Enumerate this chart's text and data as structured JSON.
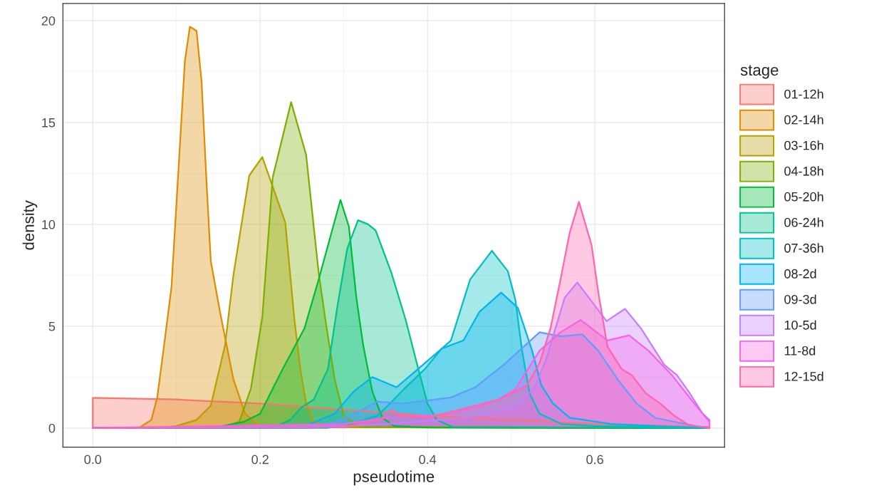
{
  "chart_data": {
    "type": "area",
    "xlabel": "pseudotime",
    "ylabel": "density",
    "legend_title": "stage",
    "legend": "right",
    "grid": true,
    "xlim": [
      -0.0357,
      0.755
    ],
    "ylim": [
      -0.94,
      20.84
    ],
    "xticks": [
      {
        "value": 0,
        "label": "0.0"
      },
      0.2,
      0.4,
      0.6
    ],
    "yticks": [
      0,
      5,
      10,
      15,
      20
    ],
    "series": [
      {
        "name": "01-12h",
        "color": "#F8766D",
        "x": [
          0,
          0,
          0.1,
          0.2,
          0.3,
          0.4,
          0.5,
          0.6,
          0.737,
          0.737
        ],
        "values": [
          0,
          1.48,
          1.4,
          1.2,
          0.9,
          0.6,
          0.4,
          0.2,
          0.05,
          0
        ]
      },
      {
        "name": "02-14h",
        "color": "#DE8C00",
        "x": [
          0,
          0.055,
          0.07,
          0.077,
          0.085,
          0.094,
          0.104,
          0.11,
          0.116,
          0.124,
          0.13,
          0.136,
          0.141,
          0.152,
          0.168,
          0.182,
          0.2,
          0.3,
          0.5,
          0.737
        ],
        "values": [
          0,
          0,
          0.4,
          1.5,
          4,
          6.9,
          13.8,
          18,
          19.7,
          19.5,
          17,
          12,
          8.2,
          5.7,
          2.4,
          0.7,
          0.1,
          0.05,
          0,
          0
        ]
      },
      {
        "name": "03-16h",
        "color": "#B79F00",
        "x": [
          0,
          0.08,
          0.1,
          0.124,
          0.141,
          0.158,
          0.168,
          0.187,
          0.2026,
          0.23,
          0.241,
          0.248,
          0.255,
          0.264,
          0.28,
          0.737
        ],
        "values": [
          0,
          0,
          0.1,
          0.4,
          1.1,
          4.05,
          7.5,
          12.4,
          13.3,
          10.1,
          5.3,
          2.9,
          1.2,
          0.3,
          0.05,
          0
        ]
      },
      {
        "name": "04-18h",
        "color": "#7CAE00",
        "x": [
          0,
          0.15,
          0.175,
          0.189,
          0.2026,
          0.215,
          0.237,
          0.255,
          0.264,
          0.27,
          0.278,
          0.289,
          0.3,
          0.32,
          0.737
        ],
        "values": [
          0,
          0,
          0.3,
          1.95,
          5.45,
          12.3,
          16,
          13.4,
          9.9,
          7.6,
          5.3,
          2.4,
          0.6,
          0.05,
          0
        ]
      },
      {
        "name": "05-20h",
        "color": "#00BA38",
        "x": [
          0,
          0.13,
          0.15,
          0.18,
          0.2,
          0.227,
          0.253,
          0.27,
          0.296,
          0.306,
          0.315,
          0.323,
          0.334,
          0.346,
          0.36,
          0.4,
          0.737
        ],
        "values": [
          0,
          0,
          0.05,
          0.3,
          0.7,
          2.9,
          4.9,
          7.3,
          11.2,
          9.9,
          6.4,
          4.1,
          1.8,
          0.5,
          0.1,
          0.02,
          0
        ]
      },
      {
        "name": "06-24h",
        "color": "#00C08B",
        "x": [
          0,
          0.2,
          0.22,
          0.236,
          0.249,
          0.264,
          0.281,
          0.292,
          0.304,
          0.317,
          0.329,
          0.338,
          0.357,
          0.374,
          0.389,
          0.4,
          0.411,
          0.43,
          0.737
        ],
        "values": [
          0,
          0,
          0.1,
          0.4,
          1.0,
          1.4,
          2.9,
          5.9,
          8.8,
          10.2,
          10.0,
          9.7,
          7.6,
          5.3,
          2.9,
          1.2,
          0.4,
          0.05,
          0
        ]
      },
      {
        "name": "07-36h",
        "color": "#00BFC4",
        "x": [
          0,
          0.28,
          0.3,
          0.34,
          0.355,
          0.374,
          0.397,
          0.417,
          0.428,
          0.451,
          0.477,
          0.496,
          0.505,
          0.513,
          0.522,
          0.534,
          0.56,
          0.6,
          0.737
        ],
        "values": [
          0,
          0,
          0.1,
          0.6,
          1.2,
          2.0,
          2.9,
          3.9,
          4.3,
          7.3,
          8.7,
          7.7,
          6.3,
          3.8,
          1.7,
          0.7,
          0.2,
          0.1,
          0
        ]
      },
      {
        "name": "08-2d",
        "color": "#00B4F0",
        "x": [
          0,
          0.24,
          0.26,
          0.289,
          0.312,
          0.334,
          0.363,
          0.386,
          0.417,
          0.443,
          0.462,
          0.488,
          0.508,
          0.525,
          0.536,
          0.55,
          0.57,
          0.62,
          0.7,
          0.737
        ],
        "values": [
          0,
          0,
          0.2,
          0.7,
          1.8,
          2.5,
          2.0,
          2.8,
          3.9,
          4.3,
          5.7,
          6.65,
          5.9,
          3.8,
          2.1,
          1.2,
          0.5,
          0.2,
          0.05,
          0
        ]
      },
      {
        "name": "09-3d",
        "color": "#619CFF",
        "x": [
          0,
          0.26,
          0.28,
          0.306,
          0.34,
          0.37,
          0.4,
          0.428,
          0.457,
          0.491,
          0.534,
          0.559,
          0.585,
          0.604,
          0.627,
          0.65,
          0.672,
          0.72,
          0.737
        ],
        "values": [
          0,
          0,
          0.15,
          0.55,
          1.3,
          1.2,
          1.35,
          1.5,
          2.0,
          3.1,
          4.7,
          4.5,
          4.6,
          3.8,
          2.4,
          1.2,
          0.5,
          0.1,
          0
        ]
      },
      {
        "name": "10-5d",
        "color": "#C77CFF",
        "x": [
          0,
          0.3,
          0.35,
          0.45,
          0.508,
          0.528,
          0.542,
          0.553,
          0.564,
          0.579,
          0.614,
          0.636,
          0.655,
          0.683,
          0.698,
          0.712,
          0.729,
          0.737,
          0.737
        ],
        "values": [
          0,
          0.1,
          0.2,
          0.5,
          1.1,
          2.0,
          3.4,
          4.9,
          6.4,
          7.15,
          5.25,
          5.85,
          4.9,
          3.1,
          2.6,
          1.8,
          0.7,
          0.4,
          0
        ]
      },
      {
        "name": "11-8d",
        "color": "#F564E3",
        "x": [
          0,
          0.3,
          0.369,
          0.4,
          0.428,
          0.457,
          0.485,
          0.505,
          0.534,
          0.559,
          0.583,
          0.615,
          0.641,
          0.664,
          0.692,
          0.715,
          0.737,
          0.737
        ],
        "values": [
          0,
          0.2,
          0.6,
          0.6,
          0.7,
          1.0,
          1.4,
          1.9,
          3.8,
          4.7,
          5.3,
          4.3,
          4.55,
          3.8,
          2.6,
          1.4,
          0.3,
          0
        ]
      },
      {
        "name": "12-15d",
        "color": "#FF64B0",
        "x": [
          0,
          0.3,
          0.343,
          0.357,
          0.37,
          0.4,
          0.485,
          0.505,
          0.519,
          0.534,
          0.547,
          0.559,
          0.57,
          0.581,
          0.596,
          0.604,
          0.615,
          0.632,
          0.644,
          0.661,
          0.678,
          0.695,
          0.712,
          0.737
        ],
        "values": [
          0,
          0.05,
          0.4,
          0.9,
          0.6,
          0.5,
          1.4,
          1.8,
          2.1,
          3.2,
          4.9,
          7.3,
          9.6,
          11.1,
          9.0,
          6.7,
          4.0,
          2.9,
          2.6,
          1.7,
          1.2,
          0.6,
          0.15,
          0
        ]
      }
    ]
  }
}
